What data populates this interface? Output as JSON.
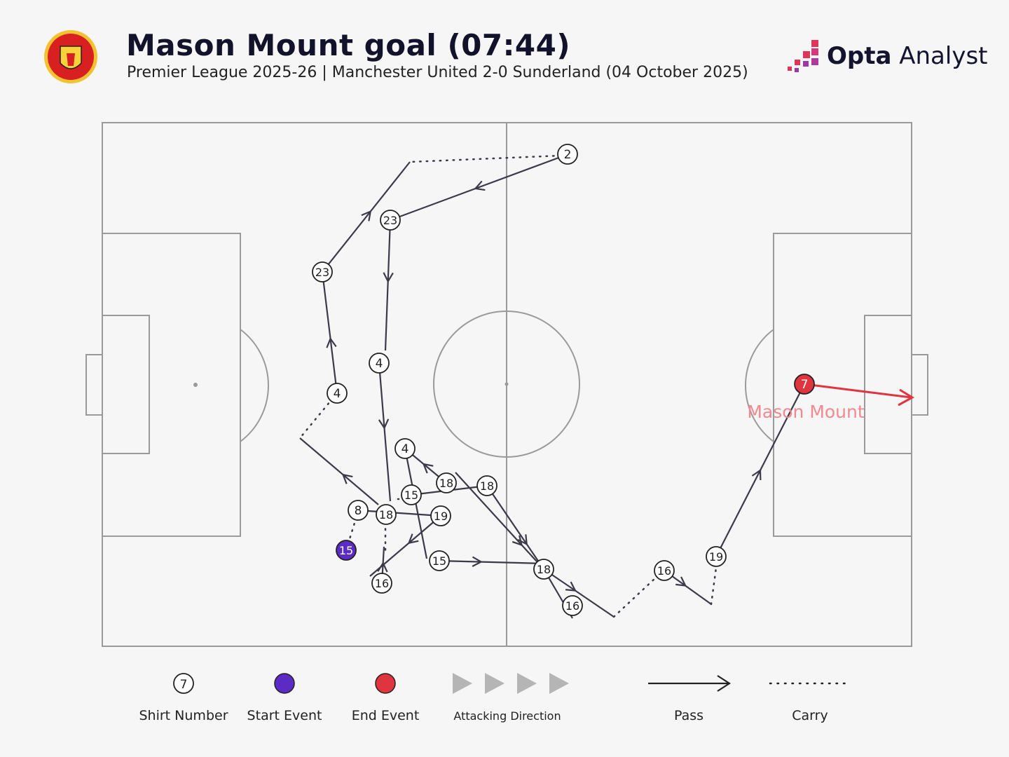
{
  "header": {
    "title": "Mason Mount goal (07:44)",
    "subtitle": "Premier League 2025-26 | Manchester United 2-0 Sunderland (04 October 2025)",
    "club_logo_text": "MANCHESTER UNITED",
    "brand_bold": "Opta",
    "brand_light": " Analyst"
  },
  "colors": {
    "background": "#f6f6f7",
    "pitch_lines": "#999999",
    "pass": "#3c3a48",
    "start": "#5b2bc4",
    "end": "#e0343f",
    "label": "#f08a90"
  },
  "scorer_label": "Mason Mount",
  "nodes": [
    {
      "n": "2"
    },
    {
      "n": "23"
    },
    {
      "n": "23"
    },
    {
      "n": "4"
    },
    {
      "n": "4"
    },
    {
      "n": "4"
    },
    {
      "n": "18"
    },
    {
      "n": "18"
    },
    {
      "n": "15"
    },
    {
      "n": "8"
    },
    {
      "n": "18"
    },
    {
      "n": "19"
    },
    {
      "n": "15",
      "type": "start"
    },
    {
      "n": "16"
    },
    {
      "n": "15"
    },
    {
      "n": "18"
    },
    {
      "n": "16"
    },
    {
      "n": "16"
    },
    {
      "n": "19"
    },
    {
      "n": "7",
      "type": "end"
    }
  ],
  "legend": {
    "shirt_number": "Shirt Number",
    "shirt_example": "7",
    "start_event": "Start Event",
    "end_event": "End Event",
    "attacking_direction": "Attacking Direction",
    "pass": "Pass",
    "carry": "Carry"
  }
}
